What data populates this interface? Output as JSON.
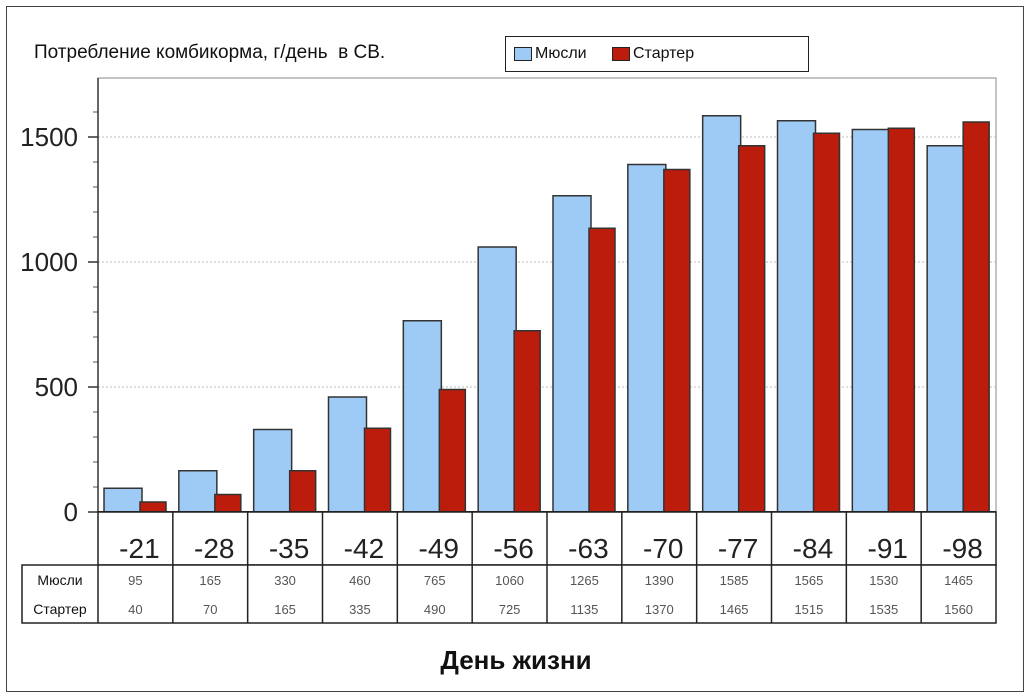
{
  "chart_data": {
    "type": "bar",
    "title": "Потребление комбикорма, г/день  в СВ.",
    "xlabel": "День жизни",
    "ylabel": "",
    "categories": [
      "-21",
      "-28",
      "-35",
      "-42",
      "-49",
      "-56",
      "-63",
      "-70",
      "-77",
      "-84",
      "-91",
      "-98"
    ],
    "series": [
      {
        "name": "Мюсли",
        "color": "#9ecbf5",
        "values": [
          95,
          165,
          330,
          460,
          765,
          1060,
          1265,
          1390,
          1585,
          1565,
          1530,
          1465
        ]
      },
      {
        "name": "Стартер",
        "color": "#bb1c0c",
        "values": [
          40,
          70,
          165,
          335,
          490,
          725,
          1135,
          1370,
          1465,
          1515,
          1535,
          1560
        ]
      }
    ],
    "ylim": [
      0,
      1700
    ],
    "yticks": [
      0,
      500,
      1000,
      1500
    ],
    "grid": true,
    "legend_position": "top",
    "table": {
      "row_labels": [
        "Мюсли",
        "Стартер"
      ],
      "rows": [
        [
          "95",
          "165",
          "330",
          "460",
          "765",
          "1060",
          "1265",
          "1390",
          "1585",
          "1565",
          "1530",
          "1465"
        ],
        [
          "40",
          "70",
          "165",
          "335",
          "490",
          "725",
          "1135",
          "1370",
          "1465",
          "1515",
          "1535",
          "1560"
        ]
      ]
    }
  }
}
